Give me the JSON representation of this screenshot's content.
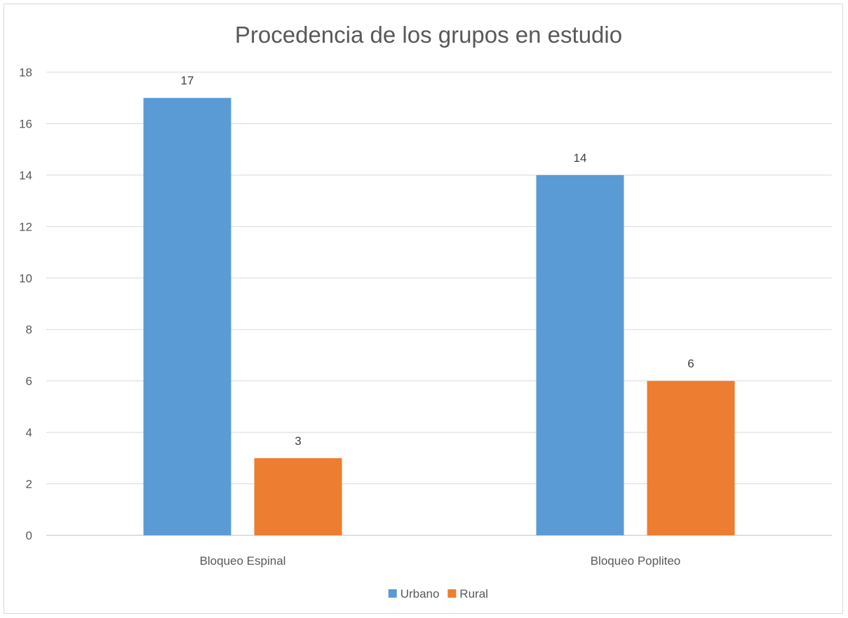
{
  "chart_data": {
    "type": "bar",
    "title": "Procedencia de los grupos en estudio",
    "xlabel": "",
    "ylabel": "",
    "categories": [
      "Bloqueo Espinal",
      "Bloqueo Popliteo"
    ],
    "series": [
      {
        "name": "Urbano",
        "values": [
          17,
          14
        ],
        "color": "#5b9bd5"
      },
      {
        "name": "Rural",
        "values": [
          3,
          6
        ],
        "color": "#ed7d31"
      }
    ],
    "ylim": [
      0,
      18
    ],
    "yticks": [
      0,
      2,
      4,
      6,
      8,
      10,
      12,
      14,
      16,
      18
    ],
    "grid": true,
    "legend_position": "bottom",
    "data_labels": true
  }
}
